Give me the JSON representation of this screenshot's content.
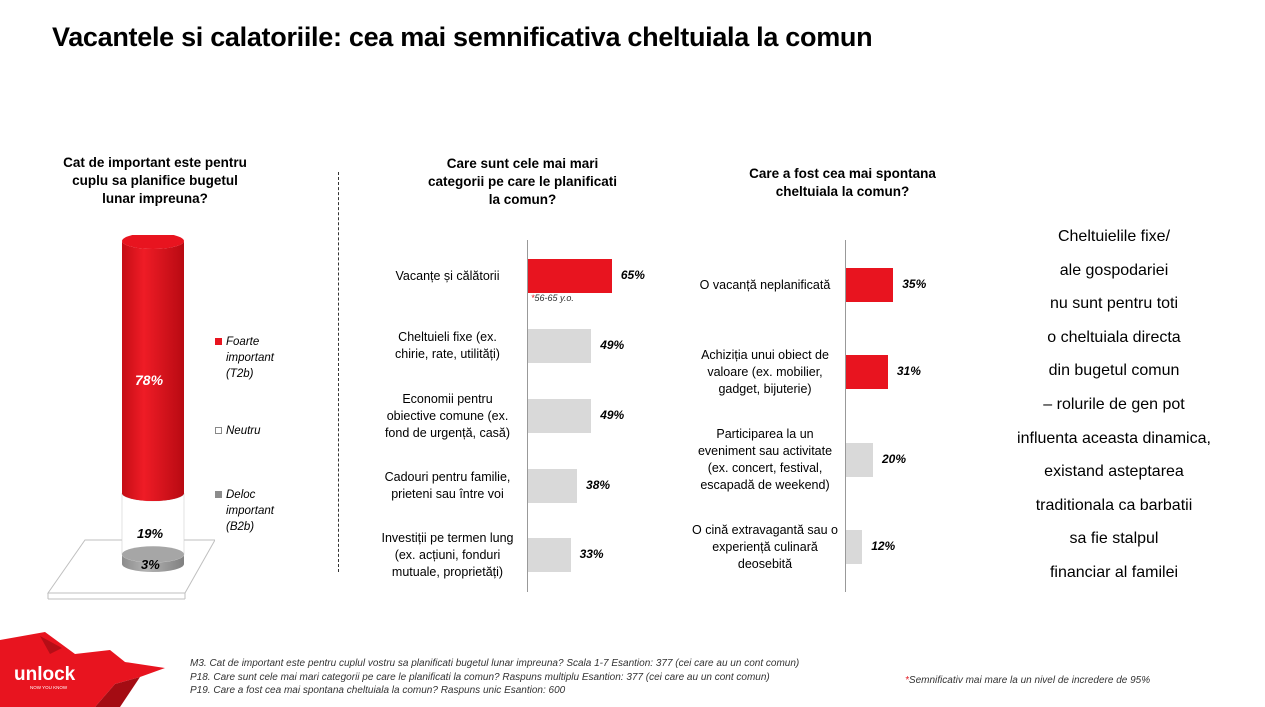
{
  "title": "Vacantele si calatoriile: cea mai semnificativa cheltuiala la comun",
  "colors": {
    "accent": "#e8141f",
    "grey": "#d9d9d9",
    "dark_grey": "#7f7f7f"
  },
  "chart_data": [
    {
      "type": "bar",
      "title": "Cat de important este pentru cuplu sa planifice bugetul lunar impreuna?",
      "stacked": true,
      "categories": [
        "Foarte important (T2b)",
        "Neutru",
        "Deloc important (B2b)"
      ],
      "values": [
        78,
        19,
        3
      ],
      "value_labels": [
        "78%",
        "19%",
        "3%"
      ],
      "legend": [
        {
          "label": "Foarte important (T2b)",
          "color": "#e8141f"
        },
        {
          "label": "Neutru",
          "color": "#ffffff"
        },
        {
          "label": "Deloc important (B2b)",
          "color": "#8c8c8c"
        }
      ]
    },
    {
      "type": "bar",
      "orientation": "horizontal",
      "title": "Care sunt cele mai mari categorii pe care le planificati la comun?",
      "categories": [
        "Vacanțe și călătorii",
        "Cheltuieli fixe (ex. chirie, rate, utilități)",
        "Economii pentru obiective comune (ex. fond de urgență, casă)",
        "Cadouri pentru familie, prieteni sau între voi",
        "Investiții pe termen lung (ex. acțiuni, fonduri mutuale, proprietăți)"
      ],
      "values": [
        65,
        49,
        49,
        38,
        33
      ],
      "value_labels": [
        "65%",
        "49%",
        "49%",
        "38%",
        "33%"
      ],
      "highlight": [
        true,
        false,
        false,
        false,
        false
      ],
      "annotation": "*56-65 y.o."
    },
    {
      "type": "bar",
      "orientation": "horizontal",
      "title": "Care a fost cea mai spontana cheltuiala la comun?",
      "categories": [
        "O vacanță neplanificată",
        "Achiziția unui obiect de valoare (ex. mobilier, gadget, bijuterie)",
        "Participarea la un eveniment sau activitate (ex. concert, festival, escapadă de weekend)",
        "O cină extravagantă sau o experiență culinară deosebită"
      ],
      "values": [
        35,
        31,
        20,
        12
      ],
      "value_labels": [
        "35%",
        "31%",
        "20%",
        "12%"
      ],
      "highlight": [
        true,
        true,
        false,
        false
      ]
    }
  ],
  "side_text_lines": [
    "Cheltuielile fixe/",
    "ale gospodariei",
    "nu sunt pentru toti",
    "o cheltuiala directa",
    "din bugetul comun",
    "– rolurile de gen pot",
    "influenta aceasta dinamica,",
    "existand asteptarea",
    "traditionala ca barbatii",
    "sa fie stalpul",
    "financiar al familei"
  ],
  "footer_lines": [
    "M3. Cat de important este pentru cuplul vostru sa planificati bugetul lunar impreuna? Scala 1-7 Esantion: 377 (cei care au un cont comun)",
    "P18. Care sunt cele mai mari categorii pe care le planificati la comun? Raspuns multiplu Esantion: 377 (cei care au un cont comun)",
    "P19. Care a fost cea mai spontana cheltuiala la comun? Raspuns unic Esantion: 600"
  ],
  "footnote": {
    "star": "*",
    "text": "Semnificativ mai mare la un nivel de incredere de 95%"
  },
  "logo": {
    "text": "unlock",
    "tagline": "NOW YOU KNOW"
  }
}
